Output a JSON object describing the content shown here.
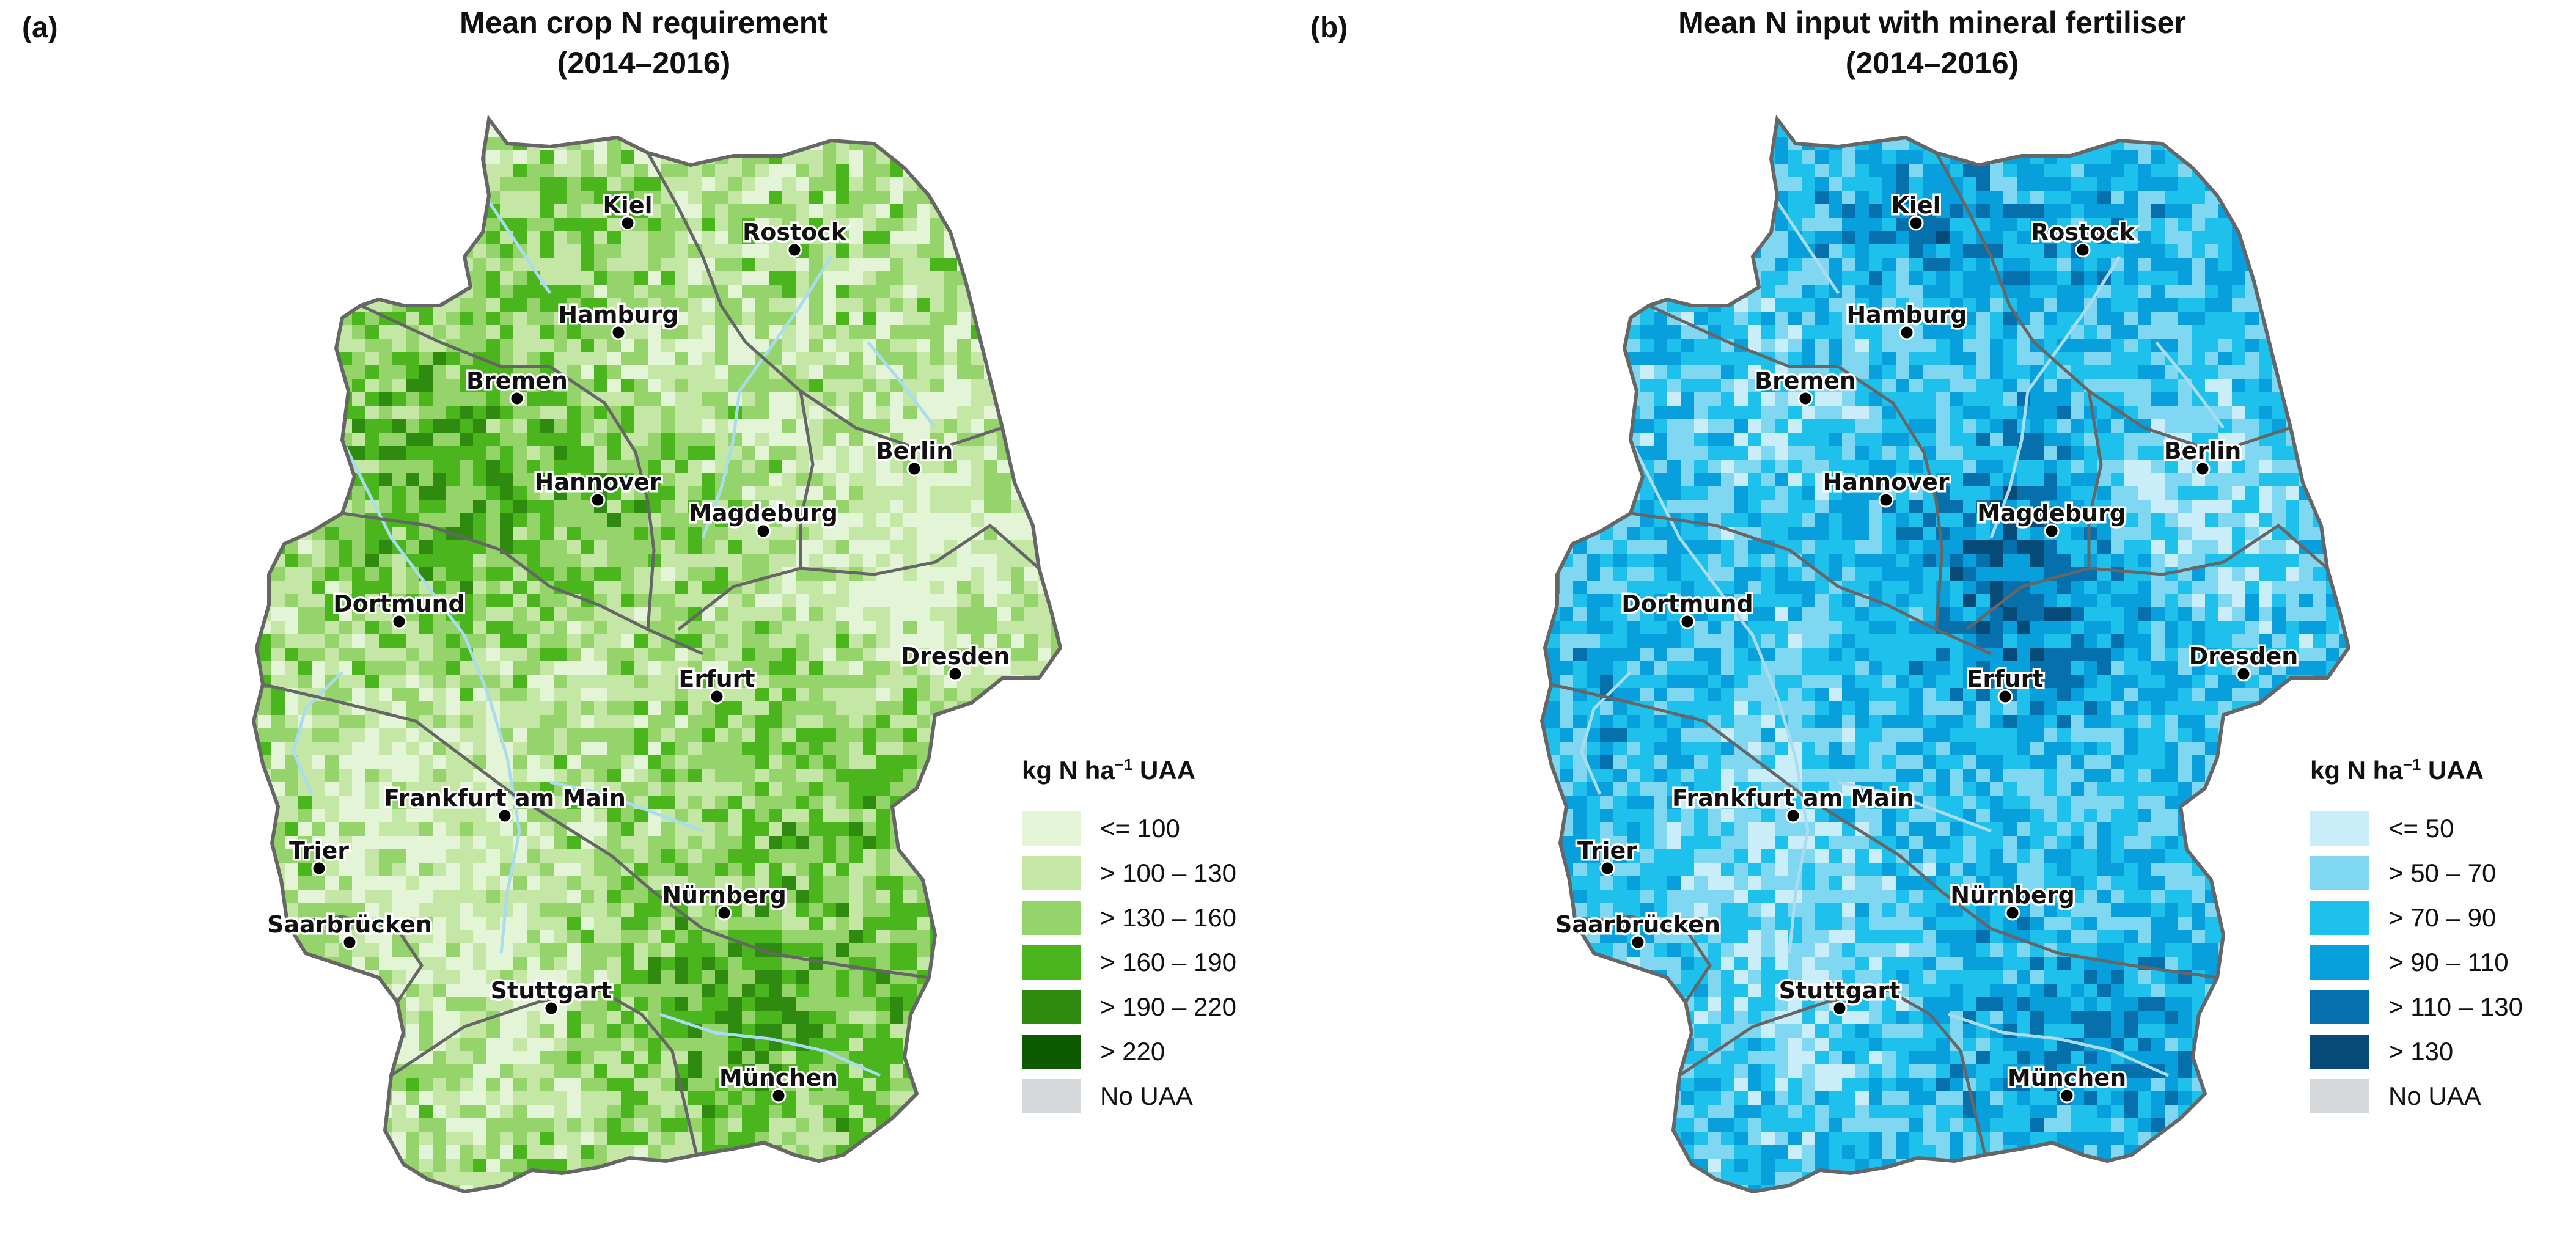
{
  "panels": [
    {
      "label": "(a)",
      "title_line1": "Mean crop N requirement",
      "title_line2": "(2014–2016)",
      "legend": {
        "title_main": "kg N ha",
        "title_sup": "−1",
        "title_tail": " UAA",
        "classes": [
          {
            "label": "<= 100",
            "color": "#e3f5d6"
          },
          {
            "label": "> 100 – 130",
            "color": "#c4e7a5"
          },
          {
            "label": "> 130 – 160",
            "color": "#94d46a"
          },
          {
            "label": "> 160 – 190",
            "color": "#4ab51d"
          },
          {
            "label": "> 190 – 220",
            "color": "#2f8a10"
          },
          {
            "label": "> 220",
            "color": "#0e5a00"
          },
          {
            "label": "No UAA",
            "color": "#d5d8da"
          }
        ]
      }
    },
    {
      "label": "(b)",
      "title_line1": "Mean N input with mineral fertiliser",
      "title_line2": "(2014–2016)",
      "legend": {
        "title_main": "kg N ha",
        "title_sup": "−1",
        "title_tail": " UAA",
        "classes": [
          {
            "label": "<= 50",
            "color": "#c9eefa"
          },
          {
            "label": "> 50 – 70",
            "color": "#7fd7f2"
          },
          {
            "label": "> 70 – 90",
            "color": "#1ec0ec"
          },
          {
            "label": "> 90 – 110",
            "color": "#07a0dd"
          },
          {
            "label": "> 110 – 130",
            "color": "#0570ac"
          },
          {
            "label": "> 130",
            "color": "#064a78"
          },
          {
            "label": "No UAA",
            "color": "#d5d8da"
          }
        ]
      }
    }
  ],
  "cities": [
    {
      "name": "Kiel"
    },
    {
      "name": "Rostock"
    },
    {
      "name": "Hamburg"
    },
    {
      "name": "Bremen"
    },
    {
      "name": "Berlin"
    },
    {
      "name": "Hannover"
    },
    {
      "name": "Magdeburg"
    },
    {
      "name": "Dortmund"
    },
    {
      "name": "Dresden"
    },
    {
      "name": "Erfurt"
    },
    {
      "name": "Frankfurt am Main"
    },
    {
      "name": "Trier"
    },
    {
      "name": "Saarbrücken"
    },
    {
      "name": "Nürnberg"
    },
    {
      "name": "Stuttgart"
    },
    {
      "name": "München"
    }
  ],
  "colors": {
    "border": "#666666",
    "river": "#a9dcef",
    "city_dot": "#000000"
  }
}
